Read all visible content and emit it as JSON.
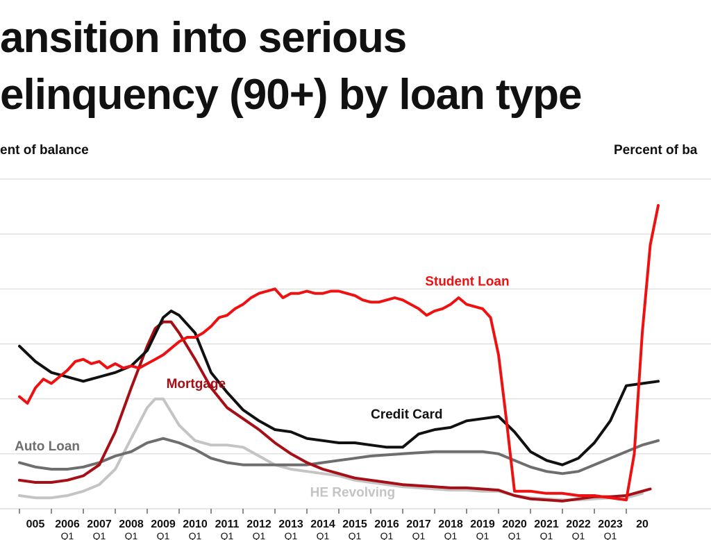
{
  "title_line1": "ansition into serious",
  "title_line2": "elinquency (90+) by loan type",
  "unit_left": "ent of balance",
  "unit_right": "Percent of ba",
  "colors": {
    "student_loan": "#ee1111",
    "mortgage": "#a50f15",
    "credit_card": "#111111",
    "auto_loan": "#6e6e6e",
    "he_revolving": "#c4c4c4",
    "grid": "#d9d9d9"
  },
  "chart_data": {
    "type": "line",
    "title": "ansition into serious elinquency (90+) by loan type",
    "ylabel_left": "ent of balance",
    "ylabel_right": "Percent of ba",
    "y_tick_labels_visible": false,
    "grid": true,
    "x_tick_labels": [
      {
        "year": "005",
        "quarter": ""
      },
      {
        "year": "2006",
        "quarter": "Q1"
      },
      {
        "year": "2007",
        "quarter": "Q1"
      },
      {
        "year": "2008",
        "quarter": "Q1"
      },
      {
        "year": "2009",
        "quarter": "Q1"
      },
      {
        "year": "2010",
        "quarter": "Q1"
      },
      {
        "year": "2011",
        "quarter": "Q1"
      },
      {
        "year": "2012",
        "quarter": "Q1"
      },
      {
        "year": "2013",
        "quarter": "Q1"
      },
      {
        "year": "2014",
        "quarter": "Q1"
      },
      {
        "year": "2015",
        "quarter": "Q1"
      },
      {
        "year": "2016",
        "quarter": "Q1"
      },
      {
        "year": "2017",
        "quarter": "Q1"
      },
      {
        "year": "2018",
        "quarter": "Q1"
      },
      {
        "year": "2019",
        "quarter": "Q1"
      },
      {
        "year": "2020",
        "quarter": "Q1"
      },
      {
        "year": "2021",
        "quarter": "Q1"
      },
      {
        "year": "2022",
        "quarter": "Q1"
      },
      {
        "year": "2023",
        "quarter": "Q1"
      },
      {
        "year": "20",
        "quarter": ""
      }
    ],
    "xlim": [
      2004.8,
      2025.2
    ],
    "ylim": [
      0,
      15
    ],
    "series": [
      {
        "name": "Student Loan",
        "color": "#ee1111",
        "x": [
          2005.0,
          2005.25,
          2005.5,
          2005.75,
          2006.0,
          2006.25,
          2006.5,
          2006.75,
          2007.0,
          2007.25,
          2007.5,
          2007.75,
          2008.0,
          2008.25,
          2008.5,
          2008.75,
          2009.0,
          2009.25,
          2009.5,
          2009.75,
          2010.0,
          2010.25,
          2010.5,
          2010.75,
          2011.0,
          2011.25,
          2011.5,
          2011.75,
          2012.0,
          2012.25,
          2012.5,
          2012.75,
          2013.0,
          2013.25,
          2013.5,
          2013.75,
          2014.0,
          2014.25,
          2014.5,
          2014.75,
          2015.0,
          2015.25,
          2015.5,
          2015.75,
          2016.0,
          2016.25,
          2016.5,
          2016.75,
          2017.0,
          2017.25,
          2017.5,
          2017.75,
          2018.0,
          2018.25,
          2018.5,
          2018.75,
          2019.0,
          2019.25,
          2019.5,
          2019.75,
          2020.0,
          2020.25,
          2020.5,
          2020.75,
          2021.0,
          2021.25,
          2021.5,
          2021.75,
          2022.0,
          2022.25,
          2022.5,
          2022.75,
          2023.0,
          2023.25,
          2023.5,
          2023.75,
          2024.0,
          2024.25,
          2024.5,
          2024.75,
          2025.0
        ],
        "y": [
          5.1,
          4.8,
          5.5,
          5.9,
          5.7,
          6.0,
          6.3,
          6.7,
          6.8,
          6.6,
          6.7,
          6.4,
          6.6,
          6.4,
          6.5,
          6.4,
          6.6,
          6.8,
          7.0,
          7.3,
          7.6,
          7.8,
          7.8,
          8.0,
          8.3,
          8.7,
          8.8,
          9.1,
          9.3,
          9.6,
          9.8,
          9.9,
          10.0,
          9.6,
          9.8,
          9.8,
          9.9,
          9.8,
          9.8,
          9.9,
          9.9,
          9.8,
          9.7,
          9.5,
          9.4,
          9.4,
          9.5,
          9.6,
          9.5,
          9.3,
          9.1,
          8.8,
          9.0,
          9.1,
          9.3,
          9.6,
          9.3,
          9.2,
          9.1,
          8.7,
          7.0,
          4.0,
          0.8,
          0.8,
          0.8,
          0.75,
          0.7,
          0.7,
          0.7,
          0.65,
          0.6,
          0.6,
          0.6,
          0.55,
          0.5,
          0.45,
          0.4,
          2.5,
          8.0,
          12.0,
          13.8
        ]
      },
      {
        "name": "Mortgage",
        "color": "#a50f15",
        "x": [
          2005.0,
          2005.5,
          2006.0,
          2006.5,
          2007.0,
          2007.5,
          2008.0,
          2008.5,
          2009.0,
          2009.25,
          2009.5,
          2009.75,
          2010.0,
          2010.5,
          2011.0,
          2011.5,
          2012.0,
          2012.5,
          2013.0,
          2013.5,
          2014.0,
          2014.5,
          2015.0,
          2015.5,
          2016.0,
          2016.5,
          2017.0,
          2017.5,
          2018.0,
          2018.5,
          2019.0,
          2019.5,
          2020.0,
          2020.5,
          2021.0,
          2021.5,
          2022.0,
          2022.5,
          2023.0,
          2023.5,
          2024.0,
          2024.5,
          2024.75
        ],
        "y": [
          1.3,
          1.2,
          1.2,
          1.3,
          1.5,
          2.0,
          3.5,
          5.5,
          7.4,
          8.2,
          8.5,
          8.5,
          8.0,
          6.8,
          5.5,
          4.6,
          4.1,
          3.6,
          3.0,
          2.5,
          2.1,
          1.8,
          1.6,
          1.4,
          1.3,
          1.2,
          1.1,
          1.05,
          1.0,
          0.95,
          0.95,
          0.9,
          0.85,
          0.6,
          0.45,
          0.4,
          0.35,
          0.45,
          0.55,
          0.55,
          0.6,
          0.8,
          0.9
        ]
      },
      {
        "name": "Credit Card",
        "color": "#111111",
        "x": [
          2005.0,
          2005.5,
          2006.0,
          2006.5,
          2007.0,
          2007.5,
          2008.0,
          2008.5,
          2009.0,
          2009.5,
          2009.75,
          2010.0,
          2010.5,
          2011.0,
          2011.5,
          2012.0,
          2012.5,
          2013.0,
          2013.5,
          2014.0,
          2014.5,
          2015.0,
          2015.5,
          2016.0,
          2016.5,
          2017.0,
          2017.5,
          2018.0,
          2018.5,
          2019.0,
          2019.5,
          2020.0,
          2020.5,
          2021.0,
          2021.5,
          2022.0,
          2022.5,
          2023.0,
          2023.5,
          2024.0,
          2024.5,
          2025.0
        ],
        "y": [
          7.4,
          6.7,
          6.2,
          6.0,
          5.8,
          6.0,
          6.2,
          6.5,
          7.2,
          8.7,
          9.0,
          8.8,
          8.0,
          6.2,
          5.3,
          4.5,
          4.0,
          3.6,
          3.5,
          3.2,
          3.1,
          3.0,
          3.0,
          2.9,
          2.8,
          2.8,
          3.4,
          3.6,
          3.7,
          4.0,
          4.1,
          4.2,
          3.5,
          2.6,
          2.2,
          2.0,
          2.3,
          3.0,
          4.0,
          5.6,
          5.7,
          5.8
        ]
      },
      {
        "name": "Auto Loan",
        "color": "#6e6e6e",
        "x": [
          2005.0,
          2005.5,
          2006.0,
          2006.5,
          2007.0,
          2007.5,
          2008.0,
          2008.5,
          2009.0,
          2009.5,
          2010.0,
          2010.5,
          2011.0,
          2011.5,
          2012.0,
          2012.5,
          2013.0,
          2013.5,
          2014.0,
          2014.5,
          2015.0,
          2015.5,
          2016.0,
          2016.5,
          2017.0,
          2017.5,
          2018.0,
          2018.5,
          2019.0,
          2019.5,
          2020.0,
          2020.5,
          2021.0,
          2021.5,
          2022.0,
          2022.5,
          2023.0,
          2023.5,
          2024.0,
          2024.5,
          2025.0
        ],
        "y": [
          2.1,
          1.9,
          1.8,
          1.8,
          1.9,
          2.1,
          2.4,
          2.6,
          3.0,
          3.2,
          3.0,
          2.7,
          2.3,
          2.1,
          2.0,
          2.0,
          2.0,
          2.0,
          2.0,
          2.1,
          2.2,
          2.3,
          2.4,
          2.45,
          2.5,
          2.55,
          2.6,
          2.6,
          2.6,
          2.6,
          2.5,
          2.2,
          1.9,
          1.7,
          1.6,
          1.7,
          2.0,
          2.3,
          2.6,
          2.9,
          3.1
        ]
      },
      {
        "name": "HE Revolving",
        "color": "#c4c4c4",
        "x": [
          2005.0,
          2005.5,
          2006.0,
          2006.5,
          2007.0,
          2007.5,
          2008.0,
          2008.5,
          2009.0,
          2009.25,
          2009.5,
          2009.75,
          2010.0,
          2010.5,
          2011.0,
          2011.5,
          2012.0,
          2012.5,
          2013.0,
          2013.5,
          2014.0,
          2014.5,
          2015.0,
          2015.5,
          2016.0,
          2016.5,
          2017.0,
          2017.5,
          2018.0,
          2018.5,
          2019.0,
          2019.5,
          2020.0,
          2020.5,
          2021.0,
          2021.5,
          2022.0,
          2022.5,
          2023.0,
          2023.5,
          2024.0,
          2024.5
        ],
        "y": [
          0.6,
          0.5,
          0.5,
          0.6,
          0.8,
          1.1,
          1.8,
          3.2,
          4.6,
          5.0,
          5.0,
          4.4,
          3.8,
          3.1,
          2.9,
          2.9,
          2.8,
          2.4,
          2.0,
          1.8,
          1.7,
          1.6,
          1.5,
          1.3,
          1.2,
          1.1,
          1.0,
          0.95,
          0.9,
          0.85,
          0.85,
          0.8,
          0.8,
          0.6,
          0.5,
          0.45,
          0.4,
          0.4,
          0.45,
          0.5,
          0.5,
          0.7
        ]
      }
    ],
    "annotations": [
      {
        "text": "Student Loan",
        "series": "Student Loan",
        "x": 2017.7,
        "y": 10.15
      },
      {
        "text": "Mortgage",
        "series": "Mortgage",
        "x": 2009.6,
        "y": 5.5
      },
      {
        "text": "Credit Card",
        "series": "Credit Card",
        "x": 2016.0,
        "y": 4.1
      },
      {
        "text": "Auto Loan",
        "series": "Auto Loan",
        "x": 2004.85,
        "y": 2.65
      },
      {
        "text": "HE Revolving",
        "series": "HE Revolving",
        "x": 2014.1,
        "y": 0.55
      }
    ]
  }
}
